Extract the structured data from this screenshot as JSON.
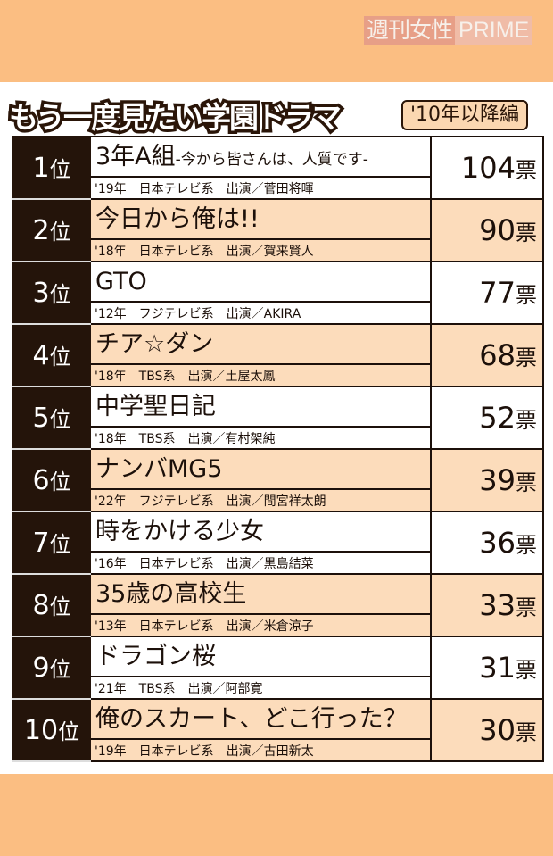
{
  "logo": {
    "jp": "週刊女性",
    "en": "PRIME"
  },
  "title": "もう一度見たい学園ドラマ",
  "tag": "'10年以降編",
  "rank_suffix": "位",
  "vote_suffix": "票",
  "colors": {
    "background": "#fbbe82",
    "row_alt": "#fcdcbb",
    "rank_cell": "#24140a"
  },
  "rows": [
    {
      "rank": "1",
      "title": "3年A組",
      "subtitle": "-今から皆さんは、人質です-",
      "info": "'19年　日本テレビ系　出演／菅田将暉",
      "votes": "104"
    },
    {
      "rank": "2",
      "title": "今日から俺は!!",
      "subtitle": "",
      "info": "'18年　日本テレビ系　出演／賀来賢人",
      "votes": "90"
    },
    {
      "rank": "3",
      "title": "GTO",
      "subtitle": "",
      "info": "'12年　フジテレビ系　出演／AKIRA",
      "votes": "77"
    },
    {
      "rank": "4",
      "title": "チア☆ダン",
      "subtitle": "",
      "info": "'18年　TBS系　出演／土屋太鳳",
      "votes": "68"
    },
    {
      "rank": "5",
      "title": "中学聖日記",
      "subtitle": "",
      "info": "'18年　TBS系　出演／有村架純",
      "votes": "52"
    },
    {
      "rank": "6",
      "title": "ナンバMG5",
      "subtitle": "",
      "info": "'22年　フジテレビ系　出演／間宮祥太朗",
      "votes": "39"
    },
    {
      "rank": "7",
      "title": "時をかける少女",
      "subtitle": "",
      "info": "'16年　日本テレビ系　出演／黒島結菜",
      "votes": "36"
    },
    {
      "rank": "8",
      "title": "35歳の高校生",
      "subtitle": "",
      "info": "'13年　日本テレビ系　出演／米倉涼子",
      "votes": "33"
    },
    {
      "rank": "9",
      "title": "ドラゴン桜",
      "subtitle": "",
      "info": "'21年　TBS系　出演／阿部寛",
      "votes": "31"
    },
    {
      "rank": "10",
      "title": "俺のスカート、どこ行った？",
      "subtitle": "",
      "info": "'19年　日本テレビ系　出演／古田新太",
      "votes": "30"
    }
  ]
}
